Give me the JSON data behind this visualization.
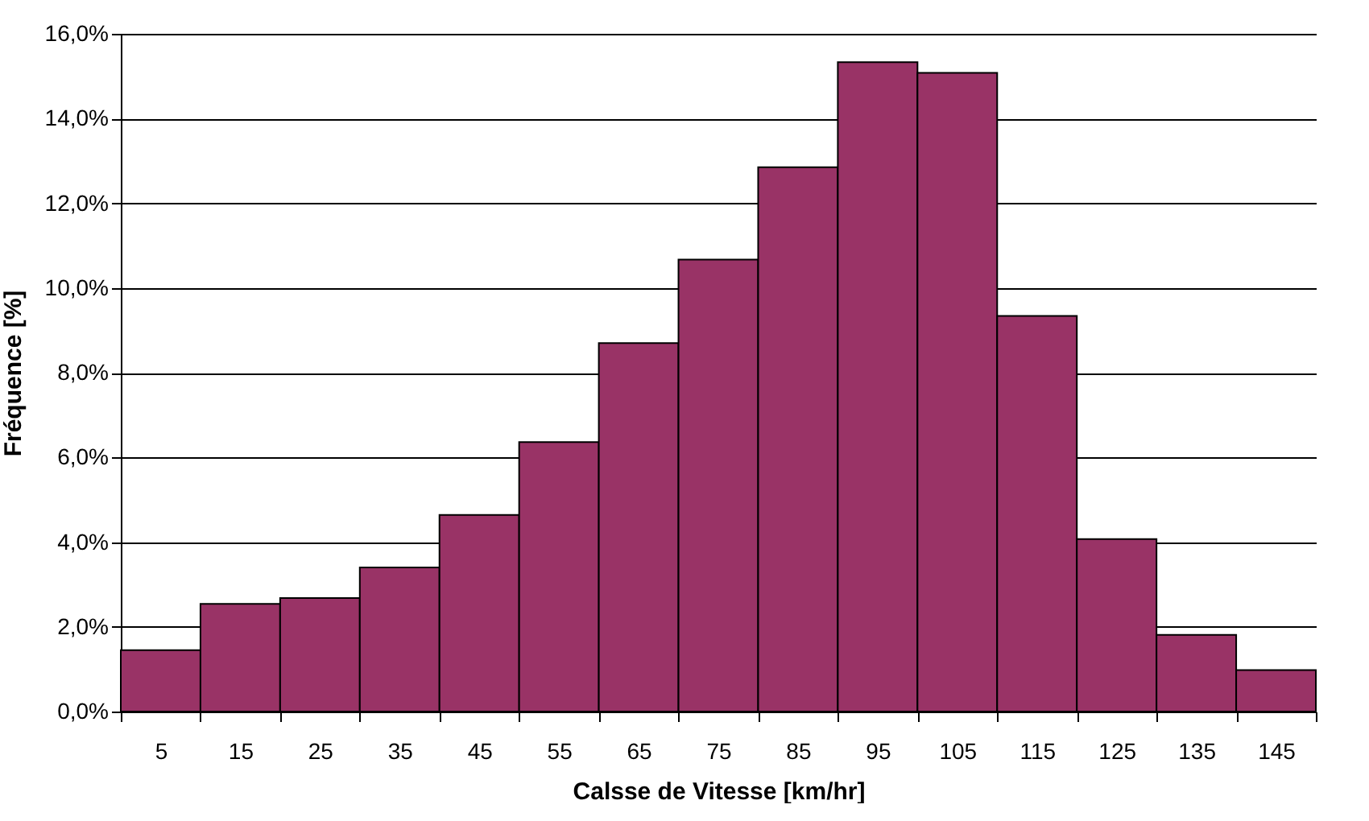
{
  "chart_data": {
    "type": "bar",
    "xlabel": "Calsse de Vitesse [km/hr]",
    "ylabel": "Fréquence [%]",
    "categories": [
      "5",
      "15",
      "25",
      "35",
      "45",
      "55",
      "65",
      "75",
      "85",
      "95",
      "105",
      "115",
      "125",
      "135",
      "145"
    ],
    "values": [
      1.45,
      2.54,
      2.68,
      3.4,
      4.64,
      6.36,
      8.7,
      10.67,
      12.85,
      15.33,
      15.08,
      9.34,
      4.07,
      1.81,
      0.98
    ],
    "color": "#993366",
    "ylim": [
      0,
      16
    ],
    "yticks": [
      {
        "value": 0,
        "label": "0,0%"
      },
      {
        "value": 2,
        "label": "2,0%"
      },
      {
        "value": 4,
        "label": "4,0%"
      },
      {
        "value": 6,
        "label": "6,0%"
      },
      {
        "value": 8,
        "label": "8,0%"
      },
      {
        "value": 10,
        "label": "10,0%"
      },
      {
        "value": 12,
        "label": "12,0%"
      },
      {
        "value": 14,
        "label": "14,0%"
      },
      {
        "value": 16,
        "label": "16,0%"
      }
    ],
    "grid": "y"
  }
}
